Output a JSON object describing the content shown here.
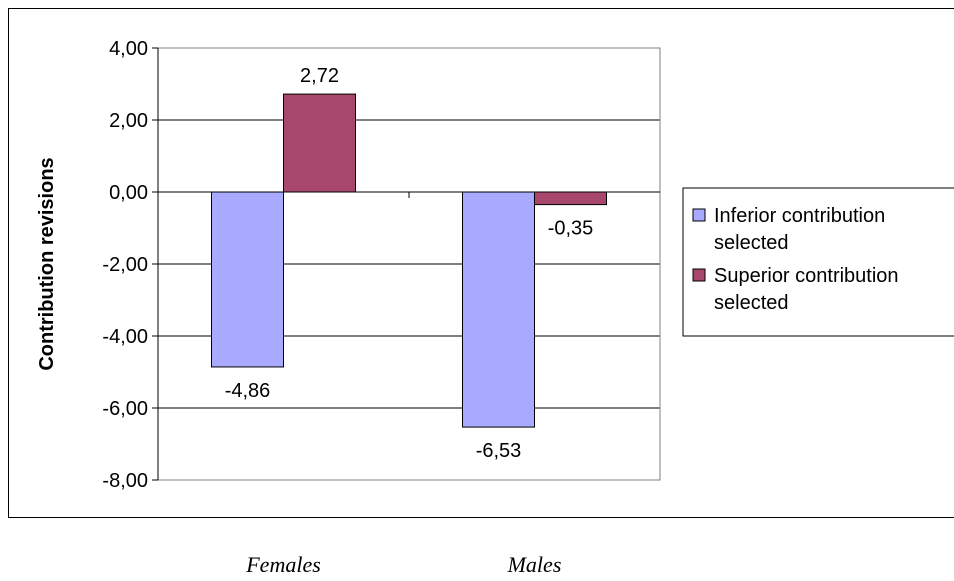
{
  "chart_data": {
    "type": "bar",
    "categories": [
      "Females",
      "Males"
    ],
    "series": [
      {
        "name": "Inferior contribution selected",
        "legend_lines": [
          "Inferior contribution",
          "selected"
        ],
        "values": [
          -4.86,
          -6.53
        ],
        "color": "#A9A9FF"
      },
      {
        "name": "Superior contribution selected",
        "legend_lines": [
          "Superior contribution",
          "selected"
        ],
        "values": [
          2.72,
          -0.35
        ],
        "color": "#A8476E"
      }
    ],
    "data_labels": [
      [
        "-4,86",
        "-6,53"
      ],
      [
        "2,72",
        "-0,35"
      ]
    ],
    "ylabel": "Contribution revisions",
    "ylim": [
      -8,
      4
    ],
    "yticks": [
      4,
      2,
      0,
      -2,
      -4,
      -6,
      -8
    ],
    "ytick_labels": [
      "4,00",
      "2,00",
      "0,00",
      "-2,00",
      "-4,00",
      "-6,00",
      "-8,00"
    ],
    "grid": true,
    "legend_position": "right"
  }
}
